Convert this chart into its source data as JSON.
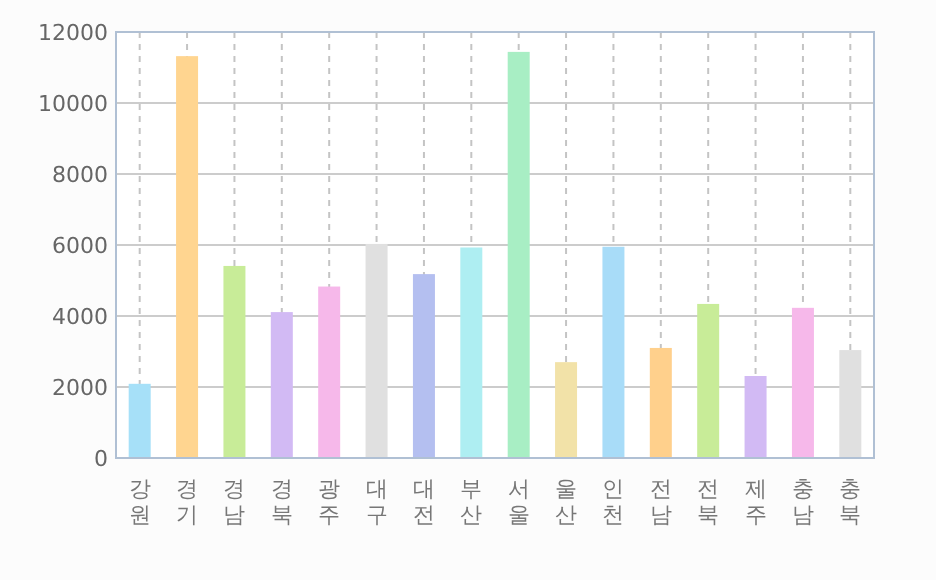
{
  "chart_data": {
    "type": "bar",
    "categories": [
      "강원",
      "경기",
      "경남",
      "경북",
      "광주",
      "대구",
      "대전",
      "부산",
      "서울",
      "울산",
      "인천",
      "전남",
      "전북",
      "제주",
      "충남",
      "충북"
    ],
    "values": [
      2090,
      11320,
      5410,
      4110,
      4830,
      6030,
      5180,
      5930,
      11440,
      2700,
      5950,
      3100,
      4340,
      2310,
      4230,
      3040
    ],
    "colors": [
      "#a6e0f8",
      "#ffd590",
      "#c8ec98",
      "#d2baf4",
      "#f6b8ea",
      "#e0e0e0",
      "#b4bff0",
      "#aeeef2",
      "#a8eec4",
      "#f2e2a8",
      "#a8dcf8",
      "#ffd08c",
      "#c8ec98",
      "#d2baf4",
      "#f6b8ea",
      "#e0e0e0"
    ],
    "ylim": [
      0,
      12000
    ],
    "yticks": [
      0,
      2000,
      4000,
      6000,
      8000,
      10000,
      12000
    ],
    "grid": true
  }
}
